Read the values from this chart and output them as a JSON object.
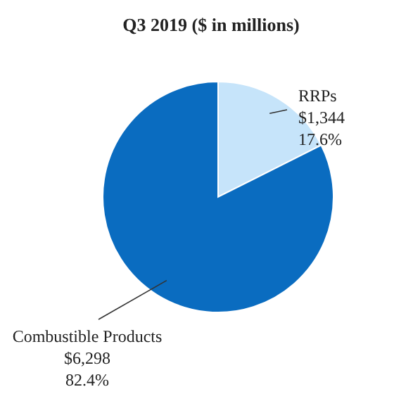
{
  "chart_data": {
    "type": "pie",
    "title": "Q3 2019 ($ in millions)",
    "categories": [
      "RRPs",
      "Combustible Products"
    ],
    "values": [
      1344,
      6298
    ],
    "colors": [
      "#c6e4fa",
      "#0a6cc0"
    ],
    "value_labels": [
      "$1,344\n17.6%",
      "$6,298\n82.4%"
    ]
  }
}
